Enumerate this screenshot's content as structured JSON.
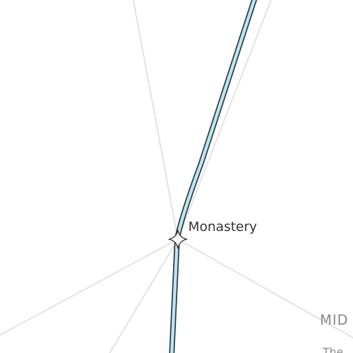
{
  "map": {
    "colors": {
      "background": "#ffffff",
      "path_lines": "#e2e2e2",
      "route_fill": "#b9e6f5",
      "route_stroke": "#2f3a3a",
      "marker_fill": "#ffffff",
      "marker_stroke": "#333333",
      "place_text": "#333333",
      "region_text": "#8a8a8a"
    },
    "marker_icon": "four-point-star-icon",
    "place": {
      "label": "Monastery"
    },
    "region": {
      "label": "MID",
      "sublabel": "The"
    }
  }
}
